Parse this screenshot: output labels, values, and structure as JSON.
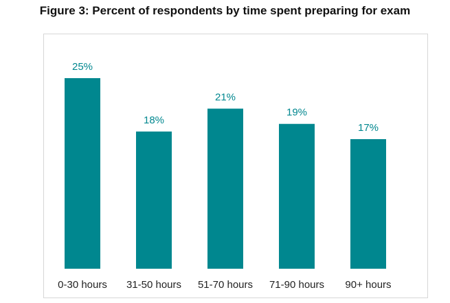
{
  "chart_data": {
    "type": "bar",
    "title": "Figure 3: Percent of respondents by time spent preparing for exam",
    "categories": [
      "0-30 hours",
      "31-50 hours",
      "51-70 hours",
      "71-90 hours",
      "90+ hours"
    ],
    "values": [
      25,
      18,
      21,
      19,
      17
    ],
    "data_labels": [
      "25%",
      "18%",
      "21%",
      "19%",
      "17%"
    ],
    "xlabel": "",
    "ylabel": "",
    "ylim": [
      0,
      25
    ],
    "grid": false,
    "legend": "none",
    "bar_color": "#00878f",
    "label_color": "#00878f"
  }
}
